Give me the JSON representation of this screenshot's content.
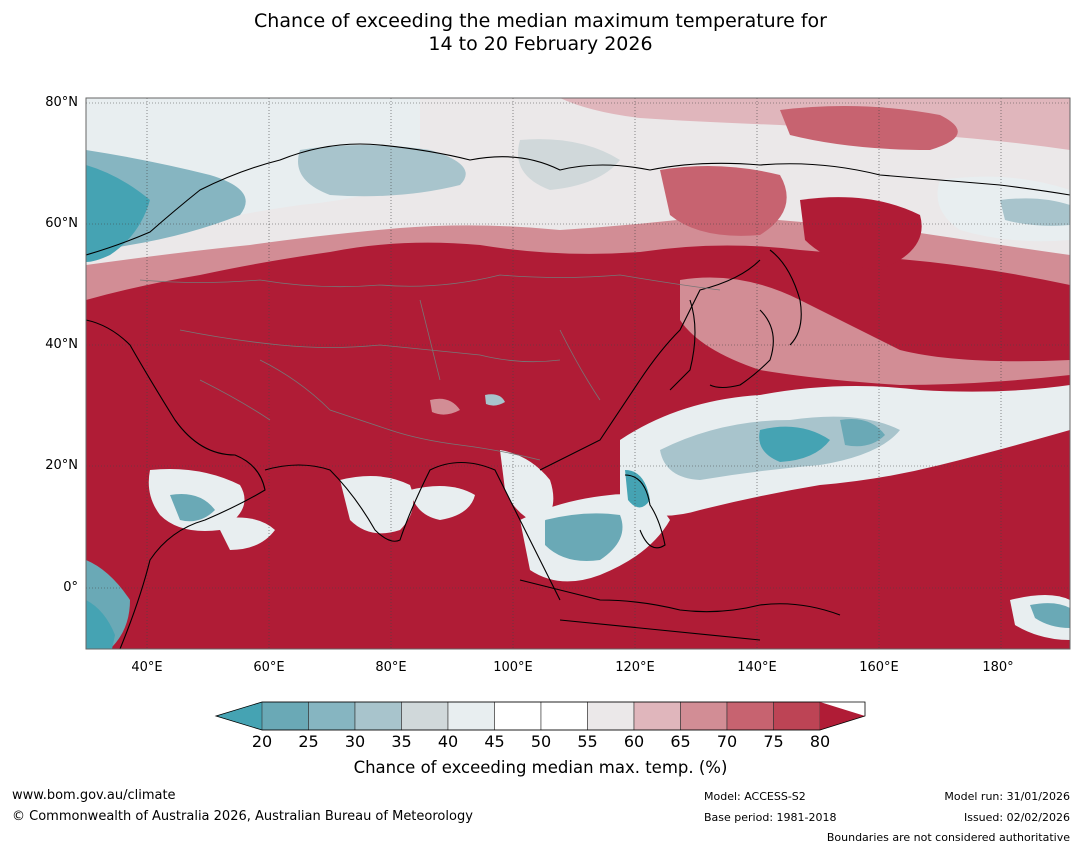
{
  "title": {
    "line1": "Chance of exceeding the median maximum temperature for",
    "line2": "14 to 20 February 2026"
  },
  "map": {
    "lat_labels": [
      "80°N",
      "60°N",
      "40°N",
      "20°N",
      "0°"
    ],
    "lon_labels": [
      "40°E",
      "60°E",
      "80°E",
      "100°E",
      "120°E",
      "140°E",
      "160°E",
      "180°"
    ],
    "extent": {
      "lon_min": 30,
      "lon_max": 191,
      "lat_min": -10,
      "lat_max": 81
    }
  },
  "colorbar": {
    "ticks": [
      "20",
      "25",
      "30",
      "35",
      "40",
      "45",
      "50",
      "55",
      "60",
      "65",
      "70",
      "75",
      "80"
    ],
    "colors": [
      "#6aa9b6",
      "#86b5c1",
      "#a8c4cc",
      "#d0d8da",
      "#e8eef0",
      "#ffffff",
      "#ffffff",
      "#ebe8e9",
      "#e0b6bc",
      "#d28d95",
      "#c76370",
      "#bd4455"
    ],
    "under_color": "#45a3b3",
    "over_color": "#b01c36",
    "label": "Chance of exceeding median max. temp. (%)"
  },
  "footer": {
    "website": "www.bom.gov.au/climate",
    "copyright": "© Commonwealth of Australia 2026, Australian Bureau of Meteorology",
    "model": "Model: ACCESS-S2",
    "base_period": "Base period: 1981-2018",
    "model_run": "Model run: 31/01/2026",
    "issued": "Issued: 02/02/2026",
    "disclaimer": "Boundaries are not considered authoritative"
  }
}
